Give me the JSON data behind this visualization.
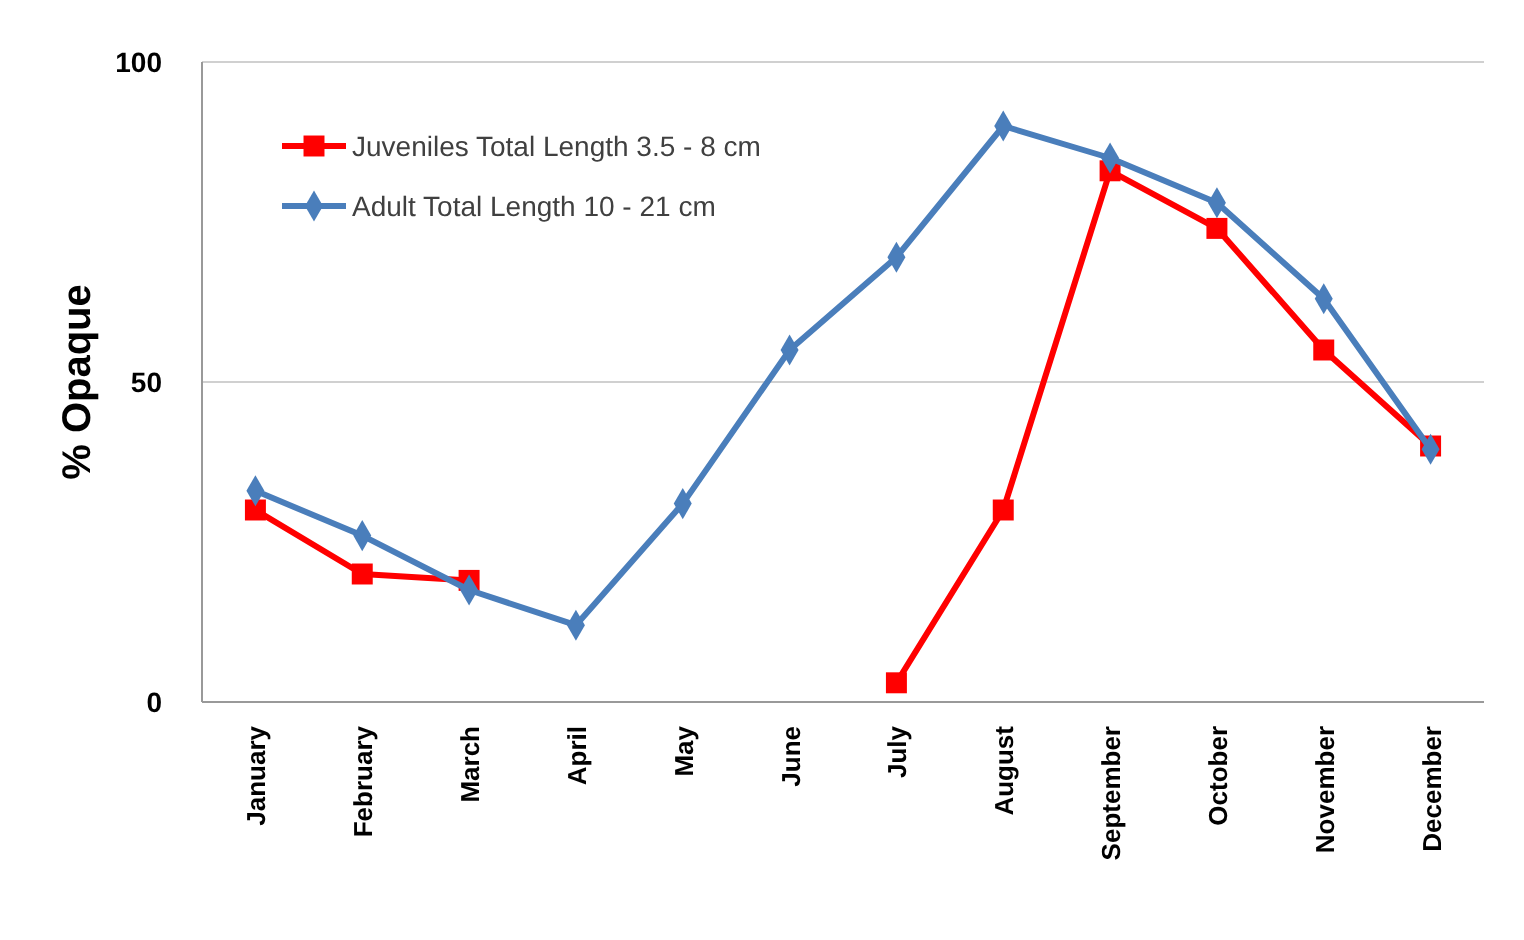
{
  "chart_data": {
    "type": "line",
    "ylabel": "% Opaque",
    "categories": [
      "January",
      "February",
      "March",
      "April",
      "May",
      "June",
      "July",
      "August",
      "September",
      "October",
      "November",
      "December"
    ],
    "series": [
      {
        "name": "Juveniles Total Length 3.5 - 8 cm",
        "color": "#ff0000",
        "marker": "square",
        "values": [
          30,
          20,
          19,
          null,
          null,
          null,
          3,
          30,
          83,
          74,
          55,
          40
        ]
      },
      {
        "name": "Adult Total Length 10 - 21 cm",
        "color": "#4a7ebb",
        "marker": "diamond",
        "values": [
          33,
          26,
          17.5,
          12,
          31,
          55,
          69.5,
          90,
          85,
          78,
          63,
          39.5
        ]
      }
    ],
    "ylim": [
      0,
      100
    ],
    "yticks": [
      0,
      50,
      100
    ],
    "grid": "y",
    "legend": "top left",
    "line_style": "solid"
  }
}
